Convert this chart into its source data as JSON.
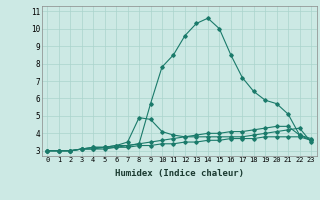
{
  "title": "",
  "xlabel": "Humidex (Indice chaleur)",
  "ylabel": "",
  "xlim": [
    -0.5,
    23.5
  ],
  "ylim": [
    2.7,
    11.3
  ],
  "yticks": [
    3,
    4,
    5,
    6,
    7,
    8,
    9,
    10,
    11
  ],
  "xticks": [
    0,
    1,
    2,
    3,
    4,
    5,
    6,
    7,
    8,
    9,
    10,
    11,
    12,
    13,
    14,
    15,
    16,
    17,
    18,
    19,
    20,
    21,
    22,
    23
  ],
  "bg_color": "#cce9e4",
  "grid_color": "#aad4cd",
  "line_color": "#1a7a6a",
  "series": [
    [
      3.0,
      3.0,
      3.0,
      3.1,
      3.2,
      3.2,
      3.3,
      3.3,
      3.4,
      5.7,
      7.8,
      8.5,
      9.6,
      10.3,
      10.6,
      10.0,
      8.5,
      7.2,
      6.4,
      5.9,
      5.7,
      5.1,
      3.9,
      3.6
    ],
    [
      3.0,
      3.0,
      3.0,
      3.1,
      3.2,
      3.2,
      3.3,
      3.5,
      4.9,
      4.8,
      4.1,
      3.9,
      3.8,
      3.8,
      3.8,
      3.8,
      3.8,
      3.8,
      3.9,
      4.0,
      4.1,
      4.2,
      4.3,
      3.5
    ],
    [
      3.0,
      3.0,
      3.0,
      3.1,
      3.1,
      3.2,
      3.2,
      3.3,
      3.4,
      3.5,
      3.6,
      3.7,
      3.8,
      3.9,
      4.0,
      4.0,
      4.1,
      4.1,
      4.2,
      4.3,
      4.4,
      4.4,
      3.9,
      3.7
    ],
    [
      3.0,
      3.0,
      3.0,
      3.1,
      3.1,
      3.1,
      3.2,
      3.2,
      3.3,
      3.3,
      3.4,
      3.4,
      3.5,
      3.5,
      3.6,
      3.6,
      3.7,
      3.7,
      3.7,
      3.8,
      3.8,
      3.8,
      3.8,
      3.6
    ]
  ]
}
